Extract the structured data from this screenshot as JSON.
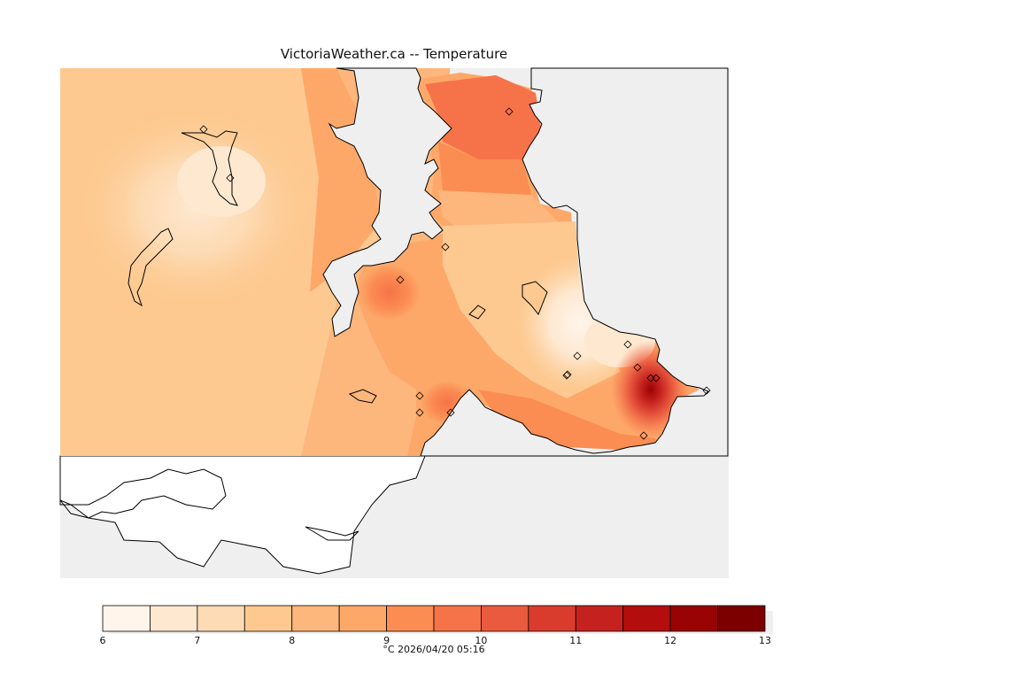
{
  "title": "VictoriaWeather.ca -- Temperature",
  "caption": "°C  2026/04/20 05:16",
  "map": {
    "colors": {
      "land": "#ffffff",
      "water": "#efefef",
      "coast": "#000000"
    }
  },
  "colorbar": {
    "ticks": [
      "6",
      "7",
      "8",
      "9",
      "10",
      "11",
      "12",
      "13"
    ],
    "min": 6,
    "max": 13,
    "step": 0.5,
    "colors": [
      "#fff5eb",
      "#fee8d0",
      "#fddbb4",
      "#fdc990",
      "#fdb67c",
      "#fda869",
      "#fb8c52",
      "#f6734a",
      "#e95a3f",
      "#d93c2c",
      "#c5221f",
      "#b40d0d",
      "#9a0303",
      "#7d0000"
    ]
  },
  "stations": {
    "marker_icon": "diamond-icon",
    "count": 17
  }
}
